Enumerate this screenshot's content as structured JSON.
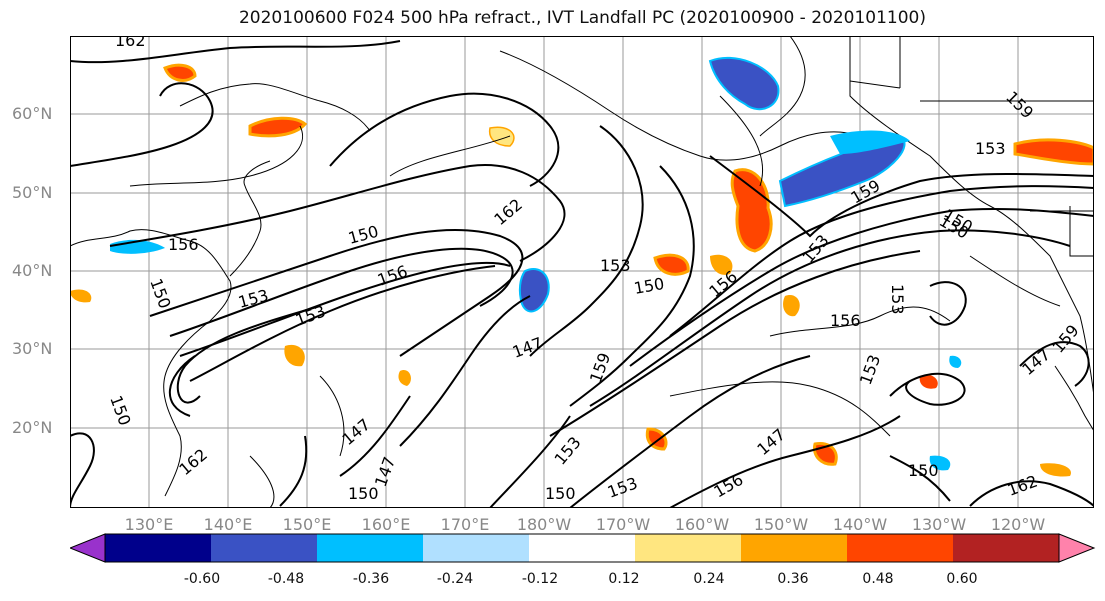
{
  "title": "2020100600 F024 500 hPa refract., IVT Landfall PC (2020100900 - 2020101100)",
  "lat_labels": [
    "60°N",
    "50°N",
    "40°N",
    "30°N",
    "20°N"
  ],
  "lon_labels": [
    "130°E",
    "140°E",
    "150°E",
    "160°E",
    "170°E",
    "180°W",
    "170°W",
    "160°W",
    "150°W",
    "140°W",
    "130°W",
    "120°W"
  ],
  "contour_labels": [
    "162",
    "159",
    "153",
    "156",
    "150",
    "162",
    "153",
    "153",
    "150",
    "156",
    "153",
    "156",
    "153",
    "150",
    "159",
    "150",
    "147",
    "150",
    "153",
    "156",
    "147",
    "162",
    "147",
    "150",
    "153",
    "150",
    "147",
    "159",
    "147",
    "153",
    "150",
    "150",
    "162",
    "153",
    "156",
    "159"
  ],
  "colorbar": {
    "ticks": [
      "-0.60",
      "-0.48",
      "-0.36",
      "-0.24",
      "-0.12",
      "0.12",
      "0.24",
      "0.36",
      "0.48",
      "0.60"
    ],
    "colors": [
      "#9932cc",
      "#00008b",
      "#3a52c4",
      "#00bfff",
      "#b0e0ff",
      "#ffffff",
      "#ffe680",
      "#ffa500",
      "#ff4500",
      "#b22222",
      "#ff82ab"
    ]
  }
}
